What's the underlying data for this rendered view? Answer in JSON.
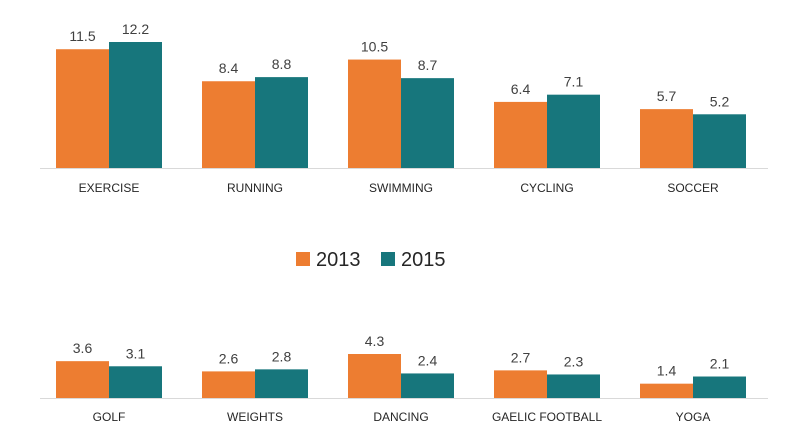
{
  "chart_data": [
    {
      "type": "bar",
      "categories": [
        "EXERCISE",
        "RUNNING",
        "SWIMMING",
        "CYCLING",
        "SOCCER"
      ],
      "series": [
        {
          "name": "2013",
          "values": [
            11.5,
            8.4,
            10.5,
            6.4,
            5.7
          ]
        },
        {
          "name": "2015",
          "values": [
            12.2,
            8.8,
            8.7,
            7.1,
            5.2
          ]
        }
      ],
      "value_labels": [
        [
          "11.5",
          "8.4",
          "10.5",
          "6.4",
          "5.7"
        ],
        [
          "12.2",
          "8.8",
          "8.7",
          "7.1",
          "5.2"
        ]
      ],
      "ylim": [
        0,
        12.2
      ],
      "grid": false
    },
    {
      "type": "bar",
      "categories": [
        "GOLF",
        "WEIGHTS",
        "DANCING",
        "GAELIC FOOTBALL",
        "YOGA"
      ],
      "series": [
        {
          "name": "2013",
          "values": [
            3.6,
            2.6,
            4.3,
            2.7,
            1.4
          ]
        },
        {
          "name": "2015",
          "values": [
            3.1,
            2.8,
            2.4,
            2.3,
            2.1
          ]
        }
      ],
      "value_labels": [
        [
          "3.6",
          "2.6",
          "4.3",
          "2.7",
          "1.4"
        ],
        [
          "3.1",
          "2.8",
          "2.4",
          "2.3",
          "2.1"
        ]
      ],
      "ylim": [
        0,
        4.3
      ],
      "grid": false
    }
  ],
  "legend": {
    "placement": "center",
    "items": [
      {
        "label": "2013",
        "color": "#ed7d31"
      },
      {
        "label": "2015",
        "color": "#17767c"
      }
    ]
  },
  "colors": {
    "series_2013": "#ed7d31",
    "series_2015": "#17767c",
    "axis": "#d9d9d9"
  }
}
